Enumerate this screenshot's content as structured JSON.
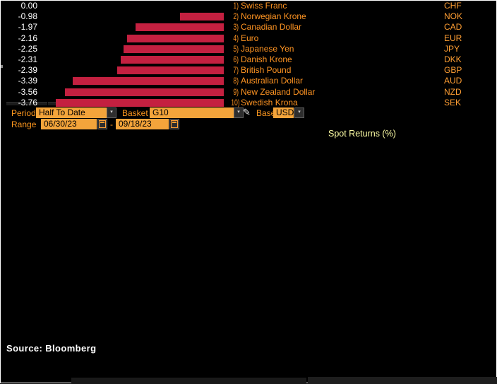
{
  "toolbar": {
    "period_label": "Period",
    "period_value": "Half To Date",
    "basket_label": "Basket",
    "basket_value": "G10",
    "base_label": "Base",
    "base_value": "USD",
    "range_label": "Range",
    "range_start": "06/30/23",
    "range_separator": "-",
    "range_end": "09/18/23"
  },
  "chart_data": {
    "type": "bar",
    "orientation": "horizontal",
    "title": "Spot Returns (%)",
    "xlim": [
      -4,
      0
    ],
    "grid": false,
    "legend": "none",
    "categories": [
      "Swiss Franc",
      "Norwegian Krone",
      "Canadian Dollar",
      "Euro",
      "Japanese Yen",
      "Danish Krone",
      "British Pound",
      "Australian Dollar",
      "New Zealand Dollar",
      "Swedish Krona"
    ],
    "rank_labels": [
      "1)",
      "2)",
      "3)",
      "4)",
      "5)",
      "6)",
      "7)",
      "8)",
      "9)",
      "10)"
    ],
    "codes": [
      "CHF",
      "NOK",
      "CAD",
      "EUR",
      "JPY",
      "DKK",
      "GBP",
      "AUD",
      "NZD",
      "SEK"
    ],
    "values": [
      0.0,
      -0.98,
      -1.97,
      -2.16,
      -2.25,
      -2.31,
      -2.39,
      -3.39,
      -3.56,
      -3.76
    ],
    "value_labels": [
      "0.00",
      "-0.98",
      "-1.97",
      "-2.16",
      "-2.25",
      "-2.31",
      "-2.39",
      "-3.39",
      "-3.56",
      "-3.76"
    ],
    "bar_color": "#c42040"
  },
  "colors": {
    "field_orange": "#f3a43b",
    "label_orange": "#ff981e",
    "list_orange": "#ff9422",
    "header_yellow": "#ffffa6",
    "bar_red": "#c42040",
    "value_white": "#ffffff"
  },
  "icons": {
    "chevron": "▾",
    "pencil": "✎"
  },
  "footer": {
    "source": "Source: Bloomberg"
  }
}
